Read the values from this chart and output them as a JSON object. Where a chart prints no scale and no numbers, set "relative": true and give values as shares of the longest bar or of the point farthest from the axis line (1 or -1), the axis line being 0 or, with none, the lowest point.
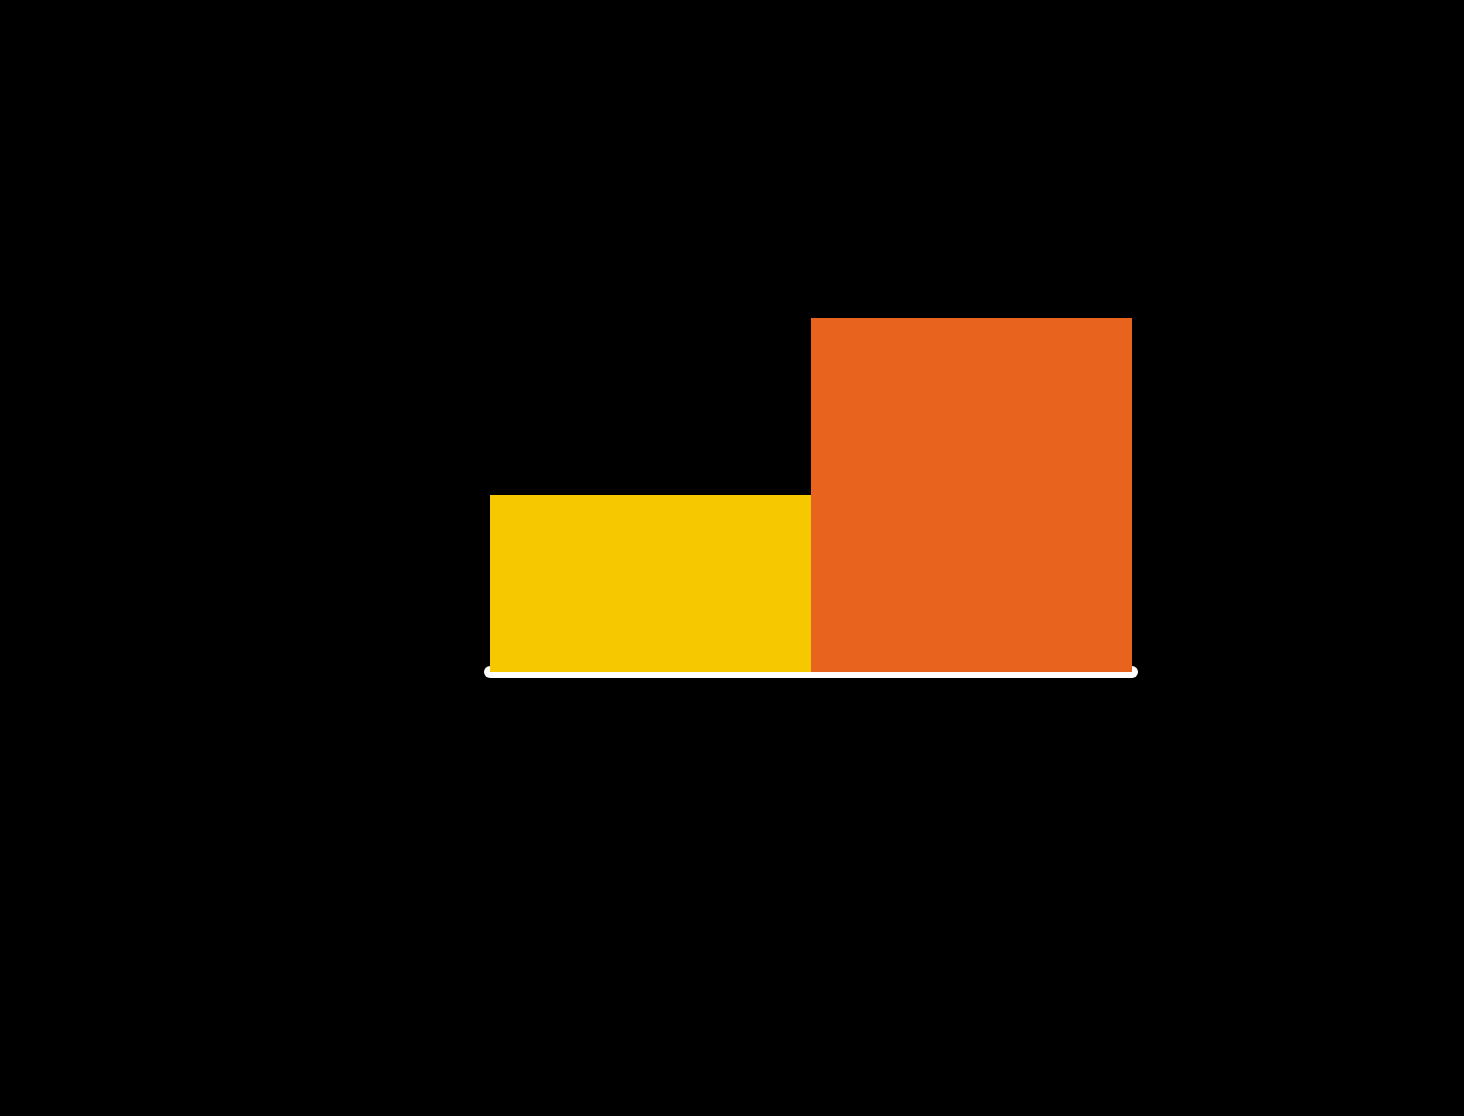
{
  "chart_data": {
    "type": "bar",
    "relative": true,
    "categories": [
      null,
      null
    ],
    "values": [
      0.5,
      1
    ],
    "colors": [
      "#f5c800",
      "#e8641e"
    ]
  }
}
